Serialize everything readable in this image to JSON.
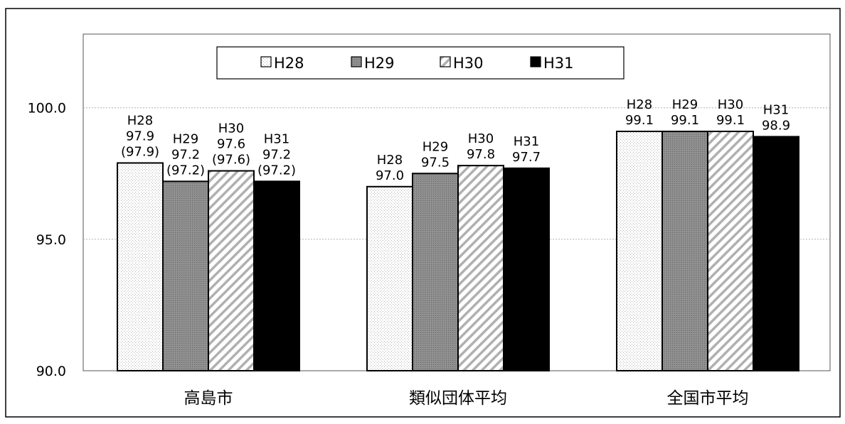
{
  "chart_data": {
    "type": "bar",
    "title": "",
    "xlabel": "",
    "ylabel": "",
    "categories": [
      "高島市",
      "類似団体平均",
      "全国市平均"
    ],
    "series": [
      {
        "name": "H28",
        "values": [
          97.9,
          97.0,
          99.1
        ]
      },
      {
        "name": "H29",
        "values": [
          97.2,
          97.5,
          99.1
        ]
      },
      {
        "name": "H30",
        "values": [
          97.6,
          97.8,
          99.1
        ]
      },
      {
        "name": "H31",
        "values": [
          97.2,
          97.7,
          98.9
        ]
      }
    ],
    "data_labels": [
      [
        [
          "H28",
          "97.9",
          "(97.9)"
        ],
        [
          "H29",
          "97.2",
          "(97.2)"
        ],
        [
          "H30",
          "97.6",
          "(97.6)"
        ],
        [
          "H31",
          "97.2",
          "(97.2)"
        ]
      ],
      [
        [
          "H28",
          "97.0"
        ],
        [
          "H29",
          "97.5"
        ],
        [
          "H30",
          "97.8"
        ],
        [
          "H31",
          "97.7"
        ]
      ],
      [
        [
          "H28",
          "99.1"
        ],
        [
          "H29",
          "99.1"
        ],
        [
          "H30",
          "99.1"
        ],
        [
          "H31",
          "98.9"
        ]
      ]
    ],
    "ylim": [
      90,
      102.8
    ],
    "yticks": [
      "90.0",
      "95.0",
      "100.0"
    ],
    "ytick_values": [
      90,
      95,
      100
    ],
    "grid": true,
    "legend_position": "top-center",
    "colors": {
      "H28": "#ffffff",
      "H29": "#8c8c8c",
      "H30": "#ffffff",
      "H31": "#000000",
      "grid": "#b0b0b0"
    }
  }
}
